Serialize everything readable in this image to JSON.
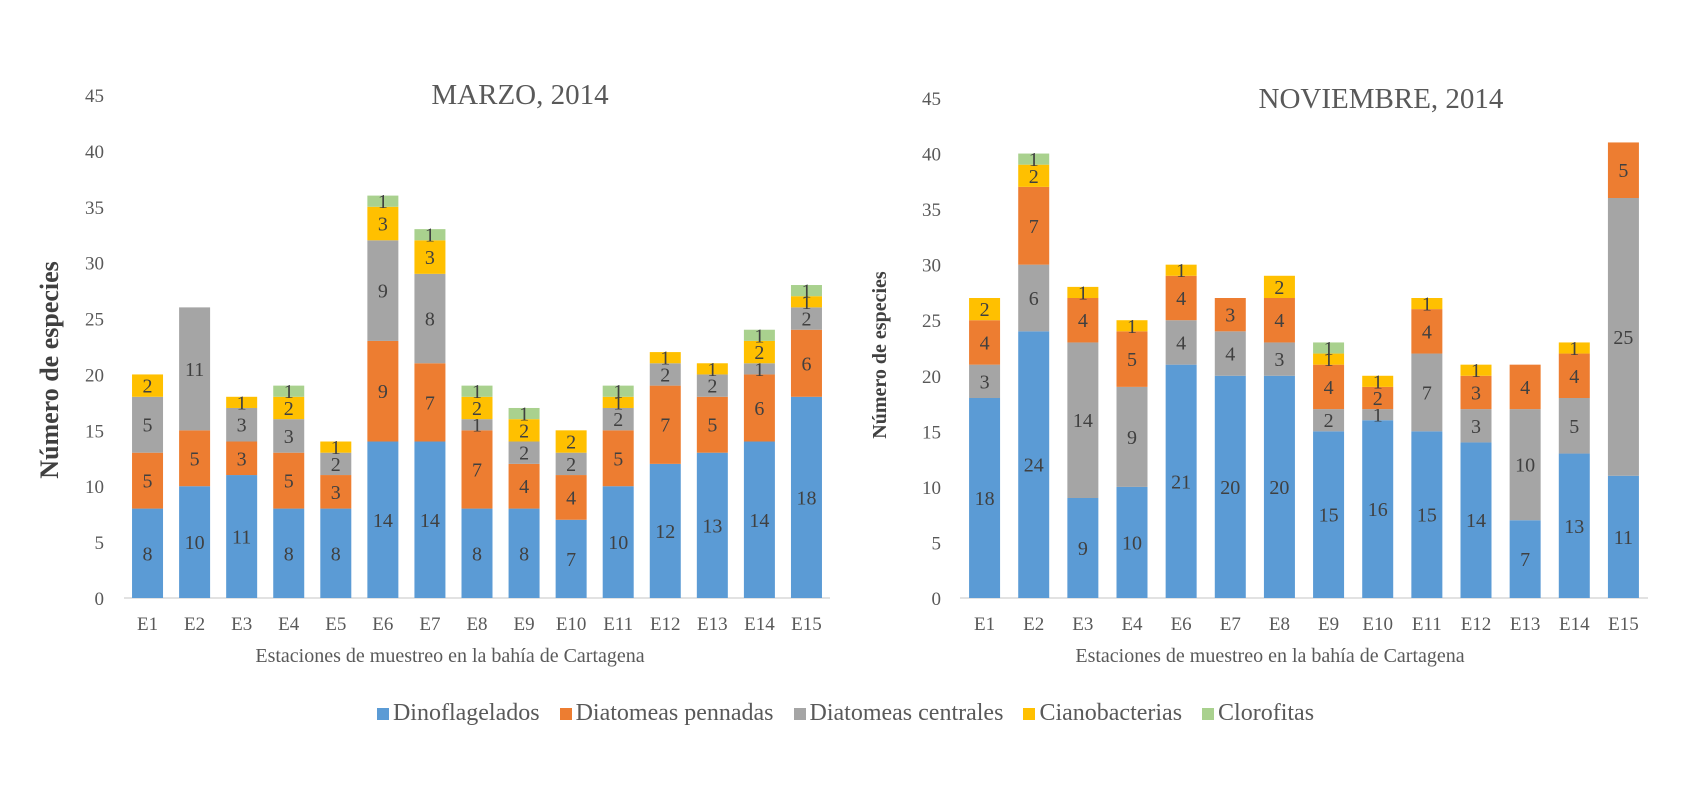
{
  "legend": [
    {
      "key": "dino",
      "label": "Dinoflagelados",
      "color": "#5B9BD5"
    },
    {
      "key": "penn",
      "label": "Diatomeas pennadas",
      "color": "#ED7D31"
    },
    {
      "key": "cent",
      "label": "Diatomeas centrales",
      "color": "#A5A5A5"
    },
    {
      "key": "ciano",
      "label": "Cianobacterias",
      "color": "#FFC000"
    },
    {
      "key": "cloro",
      "label": "Clorofitas",
      "color": "#A9D18E"
    }
  ],
  "chart_data": [
    {
      "type": "bar",
      "stacked": true,
      "title": "MARZO, 2014",
      "xlabel": "Estaciones de muestreo en la bahía de Cartagena",
      "ylabel": "Número de especies",
      "ylim": [
        0,
        45
      ],
      "yticks": [
        0,
        5,
        10,
        15,
        20,
        25,
        30,
        35,
        40,
        45
      ],
      "grid": false,
      "stack_order": [
        "Dinoflagelados",
        "Diatomeas pennadas",
        "Diatomeas centrales",
        "Cianobacterias",
        "Clorofitas"
      ],
      "categories": [
        "E1",
        "E2",
        "E3",
        "E4",
        "E5",
        "E6",
        "E7",
        "E8",
        "E9",
        "E10",
        "E11",
        "E12",
        "E13",
        "E14",
        "E15"
      ],
      "series": [
        {
          "name": "Dinoflagelados",
          "color": "#5B9BD5",
          "values": [
            8,
            10,
            11,
            8,
            8,
            14,
            14,
            8,
            8,
            7,
            10,
            12,
            13,
            14,
            18
          ]
        },
        {
          "name": "Diatomeas pennadas",
          "color": "#ED7D31",
          "values": [
            5,
            5,
            3,
            5,
            3,
            9,
            7,
            7,
            4,
            4,
            5,
            7,
            5,
            6,
            6
          ]
        },
        {
          "name": "Diatomeas centrales",
          "color": "#A5A5A5",
          "values": [
            5,
            11,
            3,
            3,
            2,
            9,
            8,
            1,
            2,
            2,
            2,
            2,
            2,
            1,
            2
          ]
        },
        {
          "name": "Cianobacterias",
          "color": "#FFC000",
          "values": [
            2,
            0,
            1,
            2,
            1,
            3,
            3,
            2,
            2,
            2,
            1,
            1,
            1,
            2,
            1
          ]
        },
        {
          "name": "Clorofitas",
          "color": "#A9D18E",
          "values": [
            0,
            0,
            0,
            1,
            0,
            1,
            1,
            1,
            1,
            0,
            1,
            0,
            0,
            1,
            1
          ]
        }
      ]
    },
    {
      "type": "bar",
      "stacked": true,
      "title": "NOVIEMBRE, 2014",
      "xlabel": "Estaciones de muestreo en la bahía de Cartagena",
      "ylabel": "Número de especies",
      "ylim": [
        0,
        45
      ],
      "yticks": [
        0,
        5,
        10,
        15,
        20,
        25,
        30,
        35,
        40,
        45
      ],
      "grid": false,
      "stack_order": [
        "Dinoflagelados",
        "Diatomeas centrales",
        "Diatomeas pennadas",
        "Cianobacterias",
        "Clorofitas"
      ],
      "categories": [
        "E1",
        "E2",
        "E3",
        "E4",
        "E6",
        "E7",
        "E8",
        "E9",
        "E10",
        "E11",
        "E12",
        "E13",
        "E14",
        "E15"
      ],
      "series": [
        {
          "name": "Dinoflagelados",
          "color": "#5B9BD5",
          "values": [
            18,
            24,
            9,
            10,
            21,
            20,
            20,
            15,
            16,
            15,
            14,
            7,
            13,
            11
          ]
        },
        {
          "name": "Diatomeas centrales",
          "color": "#A5A5A5",
          "values": [
            3,
            6,
            14,
            9,
            4,
            4,
            3,
            2,
            1,
            7,
            3,
            10,
            5,
            25
          ]
        },
        {
          "name": "Diatomeas pennadas",
          "color": "#ED7D31",
          "values": [
            4,
            7,
            4,
            5,
            4,
            3,
            4,
            4,
            2,
            4,
            3,
            4,
            4,
            5
          ]
        },
        {
          "name": "Cianobacterias",
          "color": "#FFC000",
          "values": [
            2,
            2,
            1,
            1,
            1,
            0,
            2,
            1,
            1,
            1,
            1,
            0,
            1,
            0
          ]
        },
        {
          "name": "Clorofitas",
          "color": "#A9D18E",
          "values": [
            0,
            1,
            0,
            0,
            0,
            0,
            0,
            1,
            0,
            0,
            0,
            0,
            0,
            0
          ]
        }
      ]
    }
  ]
}
